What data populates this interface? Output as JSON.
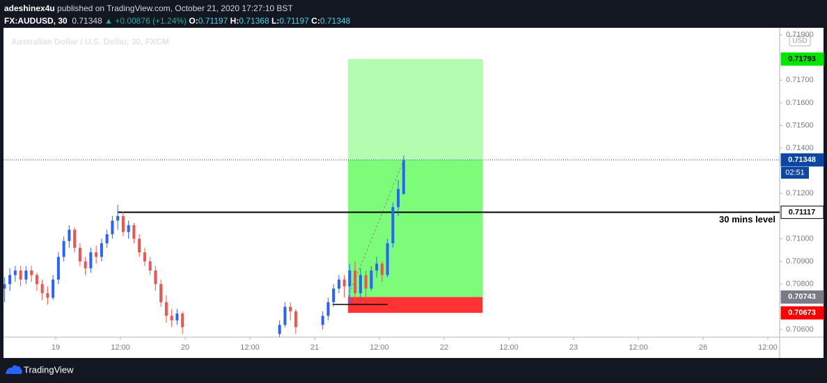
{
  "header": {
    "author": "adeshinex4u",
    "published": "published on TradingView.com, October 21, 2020 17:27:10 BST",
    "symbol": "FX:AUDUSD, 30",
    "last": "0.71348",
    "change": "▲ +0.00876 (+1.24%)",
    "ohlc": [
      {
        "label": "O:",
        "value": "0.71197"
      },
      {
        "label": "H:",
        "value": "0.71368"
      },
      {
        "label": "L:",
        "value": "0.71197"
      },
      {
        "label": "C:",
        "value": "0.71348"
      }
    ]
  },
  "footer": {
    "brand": "TradingView"
  },
  "chart_data": {
    "type": "candlestick",
    "title": "Australian Dollar / U.S. Dollar, 30, FXCM",
    "currency": "USD",
    "up_color": "#2962ff",
    "down_color": "#ef5350",
    "x": [
      -9.5,
      -8.5,
      -7.5,
      -6.5,
      -5.5,
      -4.5,
      -3.5,
      -2.5,
      -1.5,
      -0.5,
      0.5,
      1.5,
      2.5,
      3.5,
      4.5,
      5.5,
      6.5,
      7.5,
      8.5,
      9.5,
      10.5,
      11.5,
      12.5,
      13.5,
      14.5,
      15.5,
      16.5,
      17.5,
      18.5,
      19.5,
      20.5,
      21.5,
      22.5,
      23.5,
      41.5,
      42.5,
      43.5,
      44.5,
      49.5,
      50.5,
      51.5,
      52.5,
      53.5,
      54.5,
      55.5,
      56.5,
      57.5,
      58.5,
      59.5,
      60.5,
      61.5,
      62.5,
      63.5,
      64.5
    ],
    "open": [
      0.7078,
      0.708,
      0.7084,
      0.7086,
      0.7082,
      0.7086,
      0.7084,
      0.708,
      0.7076,
      0.7074,
      0.7082,
      0.7092,
      0.7099,
      0.7104,
      0.7096,
      0.709,
      0.7087,
      0.7094,
      0.7092,
      0.7098,
      0.7102,
      0.7108,
      0.711,
      0.7103,
      0.7106,
      0.71,
      0.7094,
      0.709,
      0.7086,
      0.708,
      0.7072,
      0.7066,
      0.7064,
      0.7067,
      0.7058,
      0.7062,
      0.707,
      0.7068,
      0.7062,
      0.7066,
      0.7072,
      0.7078,
      0.7082,
      0.7079,
      0.7086,
      0.7076,
      0.7084,
      0.7078,
      0.7086,
      0.7089,
      0.7084,
      0.7098,
      0.7114,
      0.71197
    ],
    "high": [
      0.7083,
      0.7087,
      0.7088,
      0.7088,
      0.7088,
      0.7088,
      0.7085,
      0.7082,
      0.7079,
      0.7084,
      0.7094,
      0.7101,
      0.7106,
      0.7105,
      0.7098,
      0.7092,
      0.7096,
      0.7097,
      0.71,
      0.7104,
      0.711,
      0.7115,
      0.7112,
      0.7108,
      0.7107,
      0.7102,
      0.7096,
      0.7092,
      0.7088,
      0.7082,
      0.7075,
      0.7069,
      0.7069,
      0.7068,
      0.7064,
      0.7072,
      0.7072,
      0.7069,
      0.7068,
      0.7074,
      0.708,
      0.7084,
      0.7084,
      0.7089,
      0.709,
      0.7087,
      0.7086,
      0.7088,
      0.7092,
      0.709,
      0.71,
      0.7116,
      0.7126,
      0.71368
    ],
    "low": [
      0.7072,
      0.7077,
      0.7081,
      0.7079,
      0.708,
      0.7081,
      0.7077,
      0.7073,
      0.7071,
      0.7073,
      0.708,
      0.709,
      0.7096,
      0.7094,
      0.7088,
      0.7084,
      0.7085,
      0.7089,
      0.709,
      0.7096,
      0.71,
      0.7104,
      0.7101,
      0.71,
      0.7098,
      0.7092,
      0.7088,
      0.7084,
      0.7077,
      0.707,
      0.7063,
      0.7061,
      0.7062,
      0.7058,
      0.7056,
      0.7061,
      0.7064,
      0.7058,
      0.706,
      0.7064,
      0.707,
      0.7076,
      0.7074,
      0.7071,
      0.7072,
      0.7072,
      0.7073,
      0.7077,
      0.7083,
      0.7081,
      0.7083,
      0.7096,
      0.711,
      0.71197
    ],
    "close": [
      0.708,
      0.7084,
      0.7086,
      0.7082,
      0.7086,
      0.7084,
      0.708,
      0.7076,
      0.7074,
      0.7082,
      0.7092,
      0.7099,
      0.7104,
      0.7096,
      0.709,
      0.7087,
      0.7094,
      0.7092,
      0.7098,
      0.7102,
      0.7108,
      0.711,
      0.7103,
      0.7106,
      0.71,
      0.7094,
      0.709,
      0.7086,
      0.708,
      0.7072,
      0.7066,
      0.7064,
      0.7067,
      0.7061,
      0.7062,
      0.707,
      0.7068,
      0.7061,
      0.7066,
      0.7072,
      0.7078,
      0.7082,
      0.7079,
      0.7086,
      0.7076,
      0.7084,
      0.7078,
      0.7086,
      0.7089,
      0.7084,
      0.7098,
      0.7114,
      0.7122,
      0.71348
    ],
    "xlim": [
      -9.68,
      134.2
    ],
    "ylim": [
      0.70566,
      0.71931
    ],
    "xticks": [
      {
        "value": 0,
        "label": "19"
      },
      {
        "value": 12,
        "label": "12:00"
      },
      {
        "value": 24,
        "label": "20"
      },
      {
        "value": 36,
        "label": "12:00"
      },
      {
        "value": 48,
        "label": "21"
      },
      {
        "value": 60,
        "label": "12:00"
      },
      {
        "value": 72,
        "label": "22"
      },
      {
        "value": 84,
        "label": "12:00"
      },
      {
        "value": 96,
        "label": "23"
      },
      {
        "value": 108,
        "label": "12:00"
      },
      {
        "value": 120,
        "label": "26"
      },
      {
        "value": 132,
        "label": "12:00"
      }
    ],
    "yticks": [
      {
        "value": 0.706,
        "label": "0.70600"
      },
      {
        "value": 0.708,
        "label": "0.70800"
      },
      {
        "value": 0.709,
        "label": "0.70900"
      },
      {
        "value": 0.71,
        "label": "0.71000"
      },
      {
        "value": 0.712,
        "label": "0.71200"
      },
      {
        "value": 0.714,
        "label": "0.71400"
      },
      {
        "value": 0.715,
        "label": "0.71500"
      },
      {
        "value": 0.716,
        "label": "0.71600"
      },
      {
        "value": 0.717,
        "label": "0.71700"
      },
      {
        "value": 0.719,
        "label": "0.71900"
      }
    ],
    "grid": false,
    "current": {
      "value": 0.71348,
      "countdown": "02:51",
      "color": "#0d47a1"
    },
    "level": {
      "value": 0.71117,
      "label": "30 mins level",
      "x_start": 11.5
    },
    "support": {
      "value": 0.7071,
      "x_start": 51.3,
      "x_end": 61.5
    },
    "position": {
      "x_start": 54.2,
      "x_end": 79.1,
      "target": 0.71793,
      "entry": 0.70743,
      "stop": 0.70673,
      "profit_color": "#b4fdb0",
      "open_profit_color": "#7dfc7a",
      "loss_color": "#ff3333",
      "target_color": "#00e600",
      "entry_color": "#787b86",
      "stop_color": "#ff0000"
    }
  }
}
